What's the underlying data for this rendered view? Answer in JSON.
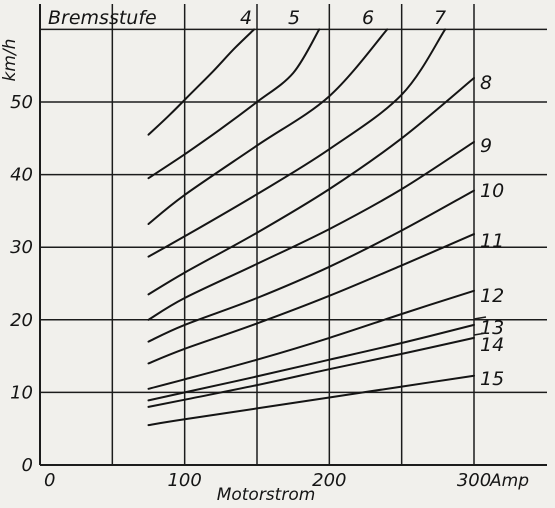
{
  "chart_data": {
    "type": "line",
    "title": "Bremsstufe",
    "xlabel": "Motorstrom",
    "ylabel": "km/h",
    "x_unit_label": "Amp",
    "xlim": [
      0,
      300
    ],
    "ylim": [
      0,
      60
    ],
    "x_ticks": [
      0,
      100,
      200,
      300
    ],
    "x_tick_labels": [
      "0",
      "100",
      "200",
      "300"
    ],
    "y_ticks": [
      0,
      10,
      20,
      30,
      40,
      50
    ],
    "y_tick_labels": [
      "0",
      "10",
      "20",
      "30",
      "40",
      "50"
    ],
    "grid": true,
    "series": [
      {
        "name": "4",
        "x": [
          75,
          90,
          105,
          120,
          135,
          148
        ],
        "y": [
          45.5,
          48.3,
          51.3,
          54.3,
          57.5,
          60
        ]
      },
      {
        "name": "5",
        "x": [
          75,
          100,
          125,
          150,
          175,
          193
        ],
        "y": [
          39.5,
          42.8,
          46.3,
          50,
          54,
          60
        ]
      },
      {
        "name": "6",
        "x": [
          75,
          100,
          150,
          200,
          240
        ],
        "y": [
          33.2,
          37.2,
          44,
          50.8,
          60
        ]
      },
      {
        "name": "7",
        "x": [
          75,
          100,
          150,
          200,
          250,
          280
        ],
        "y": [
          28.7,
          31.5,
          37.3,
          43.5,
          51,
          60
        ]
      },
      {
        "name": "8",
        "x": [
          75,
          100,
          150,
          200,
          250,
          300
        ],
        "y": [
          23.5,
          26.5,
          32,
          38,
          45,
          53.3
        ]
      },
      {
        "name": "9",
        "x": [
          75,
          100,
          150,
          200,
          250,
          300
        ],
        "y": [
          20,
          23,
          27.7,
          32.5,
          38,
          44.5
        ]
      },
      {
        "name": "10",
        "x": [
          75,
          100,
          150,
          200,
          250,
          300
        ],
        "y": [
          17,
          19.3,
          23,
          27.3,
          32.3,
          37.8
        ]
      },
      {
        "name": "11",
        "x": [
          75,
          100,
          150,
          200,
          250,
          300
        ],
        "y": [
          14,
          16,
          19.5,
          23.3,
          27.5,
          31.8
        ]
      },
      {
        "name": "12",
        "x": [
          75,
          100,
          150,
          200,
          250,
          300
        ],
        "y": [
          10.5,
          11.8,
          14.5,
          17.5,
          20.8,
          24
        ]
      },
      {
        "name": "13",
        "x": [
          75,
          100,
          150,
          200,
          250,
          300
        ],
        "y": [
          8.9,
          10,
          12.2,
          14.5,
          16.8,
          19.3
        ]
      },
      {
        "name": "14",
        "x": [
          75,
          100,
          150,
          200,
          250,
          300
        ],
        "y": [
          8,
          9,
          11,
          13.2,
          15.3,
          17.5
        ]
      },
      {
        "name": "15",
        "x": [
          75,
          100,
          150,
          200,
          250,
          300
        ],
        "y": [
          5.5,
          6.3,
          7.8,
          9.3,
          10.8,
          12.3
        ]
      }
    ]
  }
}
